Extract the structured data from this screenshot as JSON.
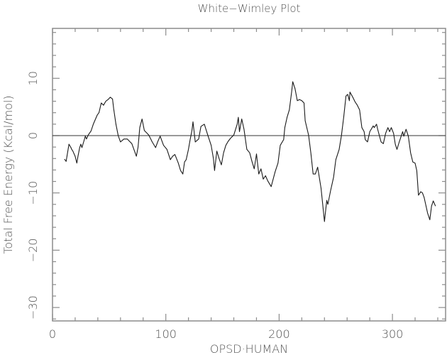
{
  "chart_data": {
    "type": "line",
    "title": "White−Wimley Plot",
    "xlabel": "OPSD·HUMAN",
    "ylabel": "Total Free Energy (Kcal/mol)",
    "xlim": [
      0,
      347
    ],
    "ylim": [
      -32.3,
      18.7
    ],
    "xticks": [
      0,
      100,
      200,
      300
    ],
    "xtick_labels": [
      "0",
      "100",
      "200",
      "300"
    ],
    "yticks": [
      10,
      0,
      -10,
      -20,
      -30
    ],
    "ytick_labels": [
      "10",
      "0",
      "−10",
      "−20",
      "−30"
    ],
    "x_minor_step": 20,
    "y_minor_step": 2,
    "grid": false,
    "zero_line": true,
    "legend": null,
    "series": [
      {
        "name": "OPSD_HUMAN",
        "x": [
          10.5,
          12,
          13,
          14.5,
          16,
          17,
          18,
          20,
          21.5,
          22.5,
          24,
          25,
          26,
          27.5,
          29,
          30,
          31.5,
          34,
          36,
          39.5,
          41,
          43,
          45,
          47,
          49,
          51,
          53,
          54,
          56,
          58,
          60,
          63,
          66,
          68,
          70,
          72,
          74,
          75.5,
          77,
          79,
          81,
          83,
          85,
          88,
          91,
          93,
          95,
          98,
          101,
          104,
          106,
          108,
          111,
          113,
          115,
          116.5,
          118,
          120,
          121.5,
          123,
          124,
          126,
          129,
          131,
          134,
          137,
          140,
          142,
          143,
          145,
          147,
          149,
          151,
          153,
          155,
          157,
          160,
          163,
          164,
          165,
          167,
          169,
          171.5,
          174,
          176,
          178,
          180,
          182,
          184,
          186,
          188,
          190,
          193,
          196.5,
          199,
          201,
          204,
          205,
          207,
          209,
          211,
          212,
          214,
          216,
          218,
          220,
          222,
          223,
          226,
          228,
          230,
          232,
          234,
          237,
          240,
          242,
          243,
          245.5,
          248,
          250,
          253,
          255,
          257,
          259,
          260.5,
          262,
          262.5,
          265,
          267,
          269,
          271,
          273,
          275,
          276,
          278,
          280,
          283,
          284,
          286,
          287,
          290,
          292,
          294,
          296,
          297.5,
          299,
          301,
          302.5,
          304,
          306,
          309,
          310,
          312,
          314,
          316,
          318,
          320,
          321.5,
          323,
          325,
          326.5,
          328,
          331,
          333,
          334.5,
          336,
          338
        ],
        "values": [
          -4.1,
          -4.5,
          -3.3,
          -1.5,
          -2.0,
          -2.4,
          -2.7,
          -3.6,
          -4.8,
          -3.6,
          -2.1,
          -1.5,
          -2.1,
          -1.1,
          -0.1,
          -0.6,
          0.1,
          0.8,
          2.0,
          3.6,
          4.0,
          5.7,
          5.3,
          6.0,
          6.3,
          6.7,
          6.4,
          4.7,
          2.0,
          0.0,
          -1.1,
          -0.6,
          -0.6,
          -1.0,
          -1.4,
          -2.5,
          -3.6,
          -2.0,
          1.4,
          2.9,
          0.9,
          0.5,
          0.1,
          -1.1,
          -2.1,
          -1.0,
          -0.1,
          -1.7,
          -2.4,
          -4.2,
          -3.6,
          -3.3,
          -4.8,
          -6.1,
          -6.7,
          -4.6,
          -4.2,
          -2.4,
          -0.7,
          0.8,
          2.4,
          -1.1,
          -0.6,
          1.6,
          2.0,
          0.1,
          -1.7,
          -4.0,
          -6.1,
          -2.7,
          -4.0,
          -5.1,
          -3.0,
          -1.7,
          -1.0,
          -0.5,
          0.1,
          2.0,
          3.2,
          0.7,
          2.9,
          1.1,
          -2.4,
          -3.0,
          -4.5,
          -5.8,
          -3.2,
          -6.7,
          -5.8,
          -7.6,
          -7.0,
          -7.9,
          -8.9,
          -6.3,
          -4.8,
          -1.7,
          -0.7,
          1.4,
          3.2,
          4.5,
          7.6,
          9.4,
          8.2,
          6.1,
          6.3,
          6.1,
          5.7,
          2.6,
          0.1,
          -3.0,
          -6.7,
          -6.7,
          -5.5,
          -9.2,
          -15.0,
          -11.3,
          -12.0,
          -9.5,
          -7.3,
          -4.2,
          -2.4,
          0.0,
          3.2,
          6.9,
          7.2,
          6.1,
          7.6,
          6.7,
          5.9,
          5.3,
          4.5,
          1.4,
          0.7,
          -0.7,
          -1.1,
          0.7,
          1.7,
          1.4,
          2.0,
          1.1,
          -1.1,
          -1.4,
          0.4,
          1.4,
          0.7,
          1.4,
          0.4,
          -1.5,
          -2.4,
          -1.1,
          0.7,
          -0.1,
          1.1,
          -0.1,
          -3.0,
          -4.6,
          -4.8,
          -6.1,
          -10.4,
          -9.8,
          -10.0,
          -10.8,
          -13.5,
          -14.7,
          -12.3,
          -11.4,
          -12.3
        ]
      }
    ]
  },
  "colors": {
    "line": "#1a1a1a",
    "axis": "#8c8c8c",
    "label": "#555555",
    "background": "#ffffff"
  }
}
